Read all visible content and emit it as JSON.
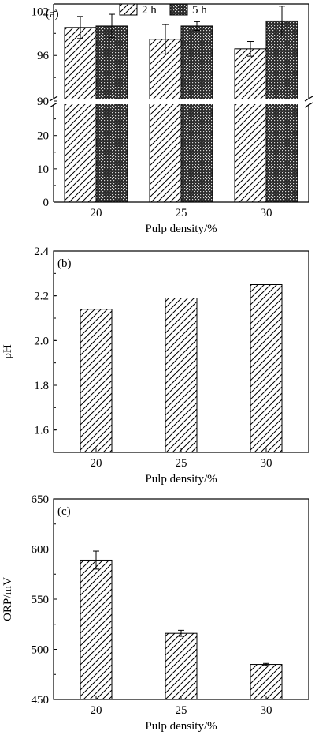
{
  "chart_data": [
    {
      "type": "bar",
      "panel_label": "(a)",
      "xlabel": "Pulp density/%",
      "ylabel": "",
      "categories": [
        "20",
        "25",
        "30"
      ],
      "series": [
        {
          "name": "2 h",
          "values": [
            99.8,
            98.2,
            96.9
          ],
          "errors": [
            1.5,
            2.0,
            1.0
          ],
          "pattern": "diagonal-hatch"
        },
        {
          "name": "5 h",
          "values": [
            100.0,
            100.0,
            100.7
          ],
          "errors": [
            1.6,
            0.6,
            2.0
          ],
          "pattern": "crosshatch-dark"
        }
      ],
      "y_axis_break": {
        "lower_range": [
          0,
          28
        ],
        "upper_range": [
          89.8,
          103
        ]
      },
      "yticks_lower": [
        "0",
        "10",
        "20"
      ],
      "yticks_upper": [
        "90",
        "96",
        "102"
      ],
      "legend_position": "top-center"
    },
    {
      "type": "bar",
      "panel_label": "(b)",
      "xlabel": "Pulp density/%",
      "ylabel": "pH",
      "categories": [
        "20",
        "25",
        "30"
      ],
      "values": [
        2.14,
        2.19,
        2.25
      ],
      "ylim": [
        1.5,
        2.4
      ],
      "yticks": [
        "1.6",
        "1.8",
        "2.0",
        "2.2",
        "2.4"
      ],
      "pattern": "diagonal-hatch"
    },
    {
      "type": "bar",
      "panel_label": "(c)",
      "xlabel": "Pulp density/%",
      "ylabel": "ORP/mV",
      "categories": [
        "20",
        "25",
        "30"
      ],
      "values": [
        589,
        516,
        485
      ],
      "errors": [
        9,
        3,
        1
      ],
      "ylim": [
        450,
        650
      ],
      "yticks": [
        "450",
        "500",
        "550",
        "600",
        "650"
      ],
      "pattern": "diagonal-hatch"
    }
  ]
}
